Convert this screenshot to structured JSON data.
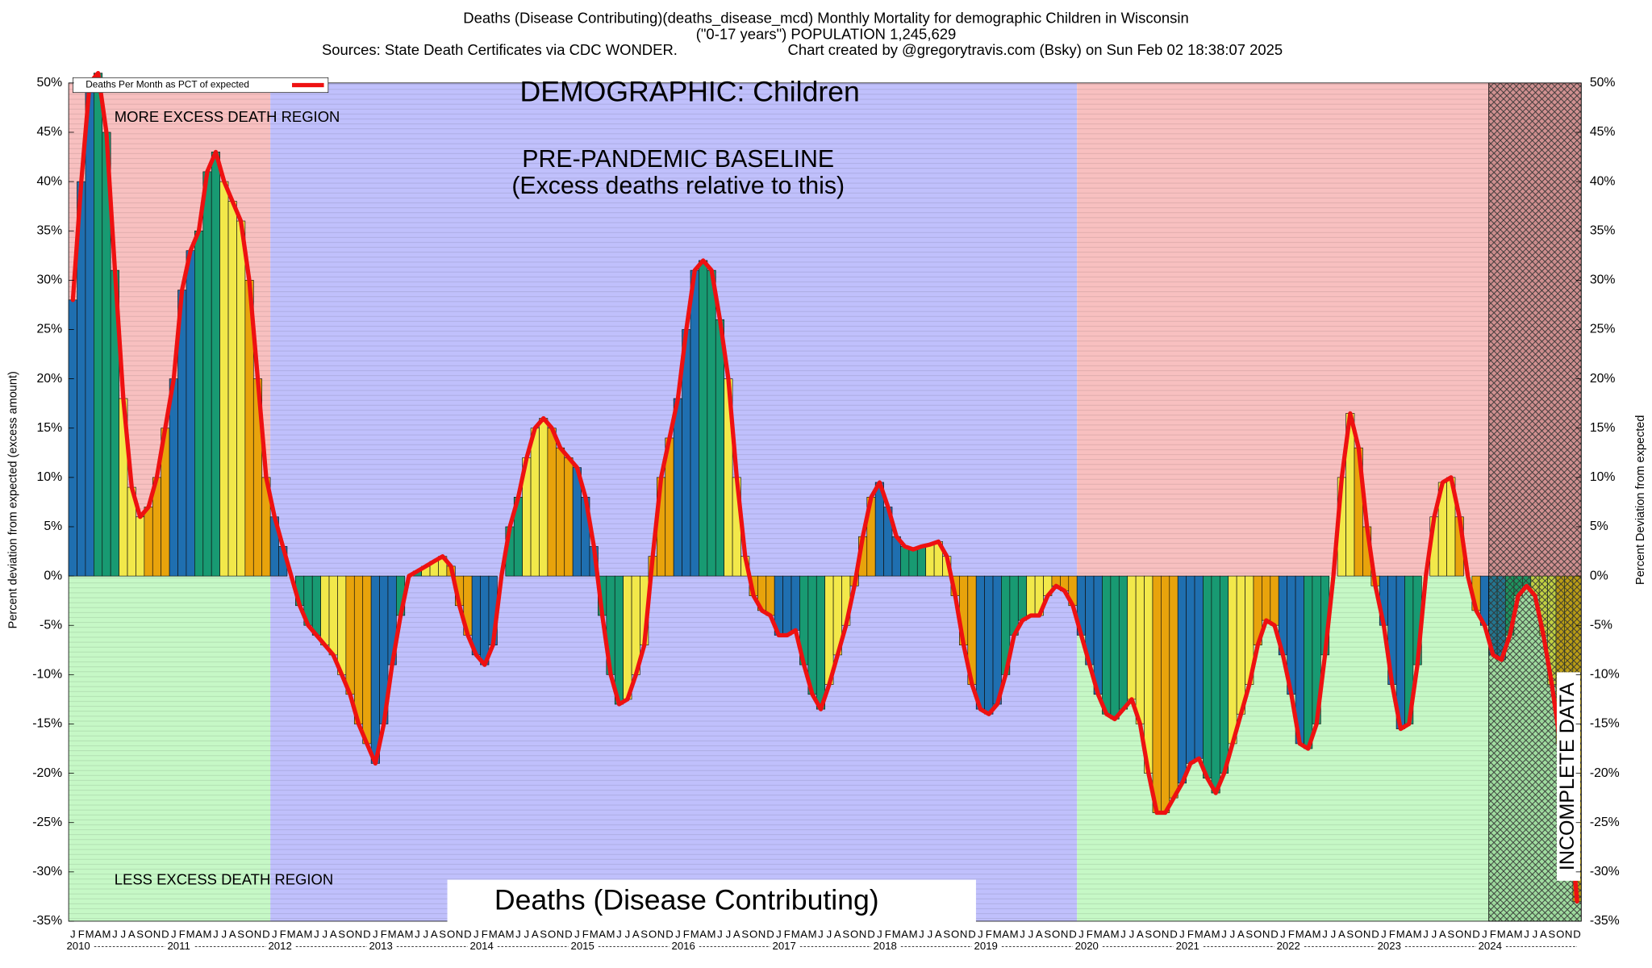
{
  "chart_data": {
    "type": "bar",
    "title": "Deaths (Disease Contributing)(deaths_disease_mcd) Monthly Mortality for demographic Children in Wisconsin",
    "subtitle": "(\"0-17 years\") POPULATION 1,245,629",
    "source": "Sources: State Death Certificates via CDC WONDER.",
    "credit": "Chart created by @gregorytravis.com (Bsky) on Sun Feb 02 18:38:07 2025",
    "demographic_label": "DEMOGRAPHIC: Children",
    "baseline_label": "PRE-PANDEMIC BASELINE",
    "baseline_note": "(Excess deaths relative to this)",
    "upper_region_label": "MORE EXCESS DEATH REGION",
    "lower_region_label": "LESS EXCESS DEATH REGION",
    "incomplete_label": "INCOMPLETE DATA",
    "panel_label": "Deaths (Disease Contributing)",
    "ylabel": "Percent deviation from expected (excess amount)",
    "y2label": "Percent Deviation from expected",
    "month_letters": [
      "J",
      "F",
      "M",
      "A",
      "M",
      "J",
      "J",
      "A",
      "S",
      "O",
      "N",
      "D"
    ],
    "years": [
      "2010",
      "2011",
      "2012",
      "2013",
      "2014",
      "2015",
      "2016",
      "2017",
      "2018",
      "2019",
      "2020",
      "2021",
      "2022",
      "2023",
      "2024"
    ],
    "quarter_colors": [
      "#1f6fb0",
      "#189a72",
      "#f2e84a",
      "#e8a30c"
    ],
    "series": [
      {
        "name": "Deaths Per Month as PCT of expected",
        "color": "#ee1111",
        "values": [
          28,
          40,
          50,
          51,
          45,
          31,
          18,
          9,
          6,
          7,
          10,
          15,
          20,
          29,
          33,
          35,
          41,
          43,
          40,
          38,
          36,
          30,
          20,
          10,
          6,
          3,
          0,
          -3,
          -5,
          -6,
          -7,
          -8,
          -10,
          -12,
          -15,
          -17,
          -19,
          -15,
          -9,
          -4,
          0,
          0.5,
          1,
          1.5,
          2,
          1,
          -3,
          -6,
          -8,
          -9,
          -7,
          0,
          5,
          8,
          12,
          15,
          16,
          15,
          13,
          12,
          11,
          8,
          3,
          -4,
          -10,
          -13,
          -12.5,
          -10,
          -7,
          2,
          10,
          14,
          18,
          25,
          31,
          32,
          31,
          26,
          20,
          10,
          2,
          -2,
          -3.5,
          -4,
          -6,
          -6,
          -5.5,
          -9,
          -12,
          -13.5,
          -11,
          -8,
          -5,
          -1,
          4,
          8,
          9.5,
          7,
          4,
          3,
          2.7,
          3,
          3.2,
          3.5,
          2,
          -2,
          -7,
          -11,
          -13.5,
          -14,
          -13,
          -10,
          -6,
          -4.5,
          -4,
          -4,
          -2,
          -1,
          -1.5,
          -3,
          -6,
          -9,
          -12,
          -14,
          -14.5,
          -13.5,
          -12.5,
          -15,
          -20,
          -24,
          -24,
          -22.5,
          -21,
          -19,
          -18.5,
          -20.5,
          -22,
          -20,
          -17,
          -14,
          -11,
          -7,
          -4.5,
          -5,
          -8,
          -12,
          -17,
          -17.5,
          -15,
          -8,
          0,
          10,
          16.5,
          13,
          5,
          -1,
          -5,
          -11,
          -15.5,
          -15,
          -9,
          0,
          6,
          9.5,
          10,
          6,
          0,
          -3.5,
          -5,
          -8,
          -8.5,
          -6,
          -2,
          -1,
          -2,
          -6,
          -11,
          -17,
          -23,
          -33
        ]
      }
    ],
    "ylim": [
      -35,
      50
    ],
    "yticks": [
      {
        "value": -35,
        "label": "-35%"
      },
      {
        "value": -30,
        "label": "-30%"
      },
      {
        "value": -25,
        "label": "-25%"
      },
      {
        "value": -20,
        "label": "-20%"
      },
      {
        "value": -15,
        "label": "-15%"
      },
      {
        "value": -10,
        "label": "-10%"
      },
      {
        "value": -5,
        "label": "-5%"
      },
      {
        "value": 0,
        "label": "0%"
      },
      {
        "value": 5,
        "label": "5%"
      },
      {
        "value": 10,
        "label": "10%"
      },
      {
        "value": 15,
        "label": "15%"
      },
      {
        "value": 20,
        "label": "20%"
      },
      {
        "value": 25,
        "label": "25%"
      },
      {
        "value": 30,
        "label": "30%"
      },
      {
        "value": 35,
        "label": "35%"
      },
      {
        "value": 40,
        "label": "40%"
      },
      {
        "value": 45,
        "label": "45%"
      },
      {
        "value": 50,
        "label": "50%"
      }
    ],
    "legend": "upper left"
  }
}
